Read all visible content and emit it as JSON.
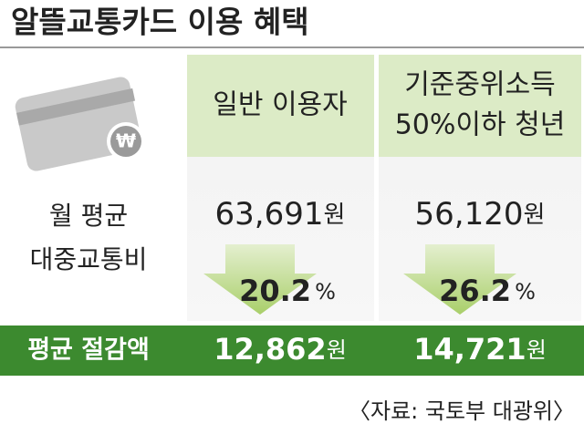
{
  "title": "알뜰교통카드 이용 혜택",
  "row_label": [
    "월 평균",
    "대중교통비"
  ],
  "columns": [
    {
      "header": [
        "일반 이용자"
      ],
      "monthly_cost": "63,691",
      "cost_unit": "원",
      "reduction": "20.2",
      "reduction_unit": "%",
      "savings": "12,862",
      "savings_unit": "원"
    },
    {
      "header": [
        "기준중위소득",
        "50%이하 청년"
      ],
      "monthly_cost": "56,120",
      "cost_unit": "원",
      "reduction": "26.2",
      "reduction_unit": "%",
      "savings": "14,721",
      "savings_unit": "원"
    }
  ],
  "savings_label": "평균 절감액",
  "source": "〈자료: 국토부 대광위〉"
}
